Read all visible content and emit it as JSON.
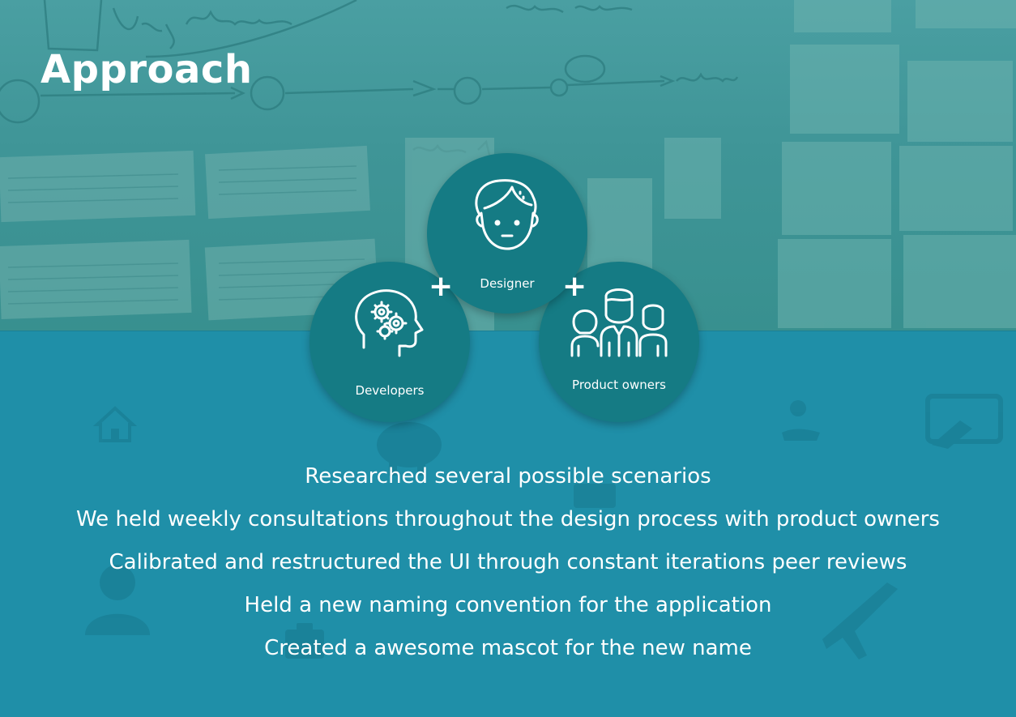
{
  "slide": {
    "title": "Approach"
  },
  "roles": {
    "designer": {
      "label": "Designer",
      "icon": "designer-face-icon"
    },
    "developers": {
      "label": "Developers",
      "icon": "brain-gears-icon"
    },
    "product_owners": {
      "label": "Product owners",
      "icon": "people-group-icon"
    },
    "plus_symbol": "+"
  },
  "points": [
    "Researched several possible scenarios",
    "We held weekly consultations throughout the design process with product owners",
    "Calibrated and restructured the UI through constant iterations peer reviews",
    "Held a new naming convention for the application",
    "Created a awesome mascot for the new name"
  ],
  "colors": {
    "background": "#1f8fa8",
    "circle": "#157b84",
    "text": "#ffffff"
  }
}
